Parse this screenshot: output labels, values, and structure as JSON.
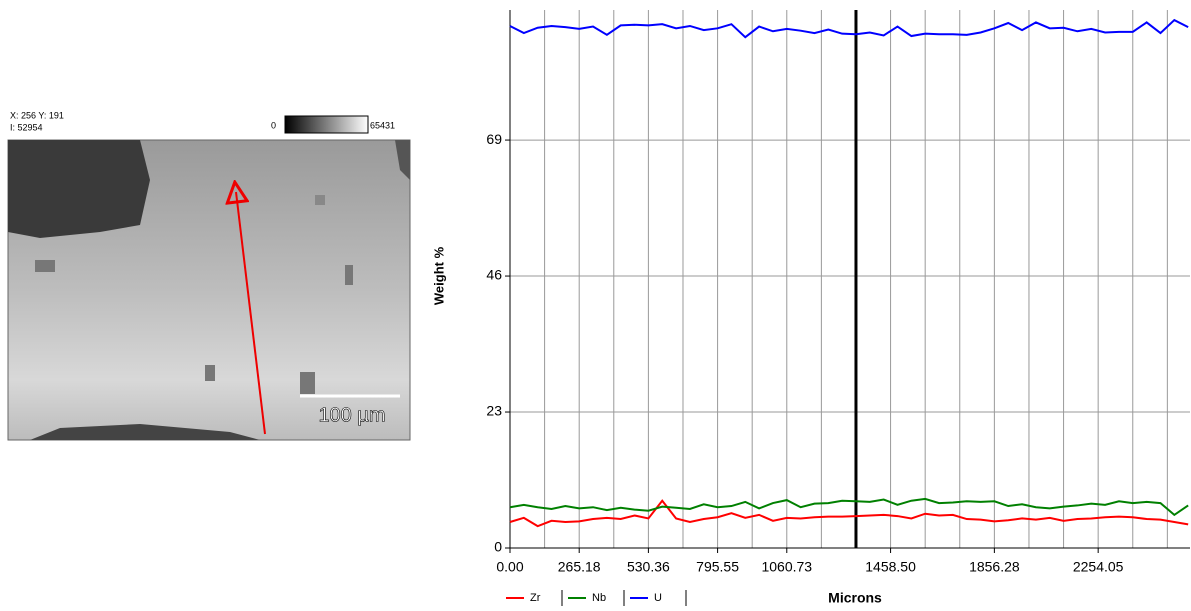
{
  "image_panel": {
    "coords": "X: 256 Y: 191",
    "intensity": "I: 52954",
    "colorbar_min": "0",
    "colorbar_max": "65431",
    "scale_bar": "100 µm"
  },
  "chart_data": {
    "type": "line",
    "y_label": "Weight %",
    "x_label": "Microns",
    "x": [
      0,
      53.04,
      106.08,
      159.12,
      212.16,
      265.2,
      318.24,
      371.28,
      424.32,
      477.36,
      530.4,
      583.44,
      636.48,
      689.52,
      742.56,
      795.6,
      848.64,
      901.68,
      954.72,
      1007.76,
      1060.8,
      1113.84,
      1166.88,
      1219.92,
      1272.96,
      1326,
      1379.04,
      1432.08,
      1485.12,
      1538.16,
      1591.2,
      1644.24,
      1697.28,
      1750.32,
      1803.36,
      1856.4,
      1909.44,
      1962.48,
      2015.52,
      2068.56,
      2121.6,
      2174.64,
      2227.68,
      2280.72,
      2333.76,
      2386.8,
      2439.84,
      2492.88,
      2545.92,
      2598.96
    ],
    "series": [
      {
        "name": "Zr",
        "color": "#ff0000",
        "values": [
          4.4,
          5.1,
          3.7,
          4.6,
          4.4,
          4.5,
          4.9,
          5.1,
          4.9,
          5.5,
          5.0,
          8.0,
          5.0,
          4.4,
          4.9,
          5.2,
          5.9,
          5.1,
          5.6,
          4.6,
          5.1,
          5.0,
          5.2,
          5.3,
          5.3,
          5.4,
          5.5,
          5.6,
          5.4,
          5.0,
          5.8,
          5.5,
          5.6,
          4.9,
          4.8,
          4.5,
          4.7,
          5.0,
          4.8,
          5.1,
          4.6,
          4.9,
          5.0,
          5.2,
          5.3,
          5.2,
          4.9,
          4.8,
          4.4,
          4.0
        ]
      },
      {
        "name": "Nb",
        "color": "#008000",
        "values": [
          6.9,
          7.3,
          6.9,
          6.6,
          7.1,
          6.7,
          6.9,
          6.4,
          6.8,
          6.5,
          6.3,
          7.0,
          6.8,
          6.6,
          7.4,
          6.9,
          7.1,
          7.8,
          6.7,
          7.6,
          8.1,
          6.9,
          7.5,
          7.6,
          8.0,
          7.9,
          7.8,
          8.2,
          7.3,
          8.0,
          8.3,
          7.6,
          7.7,
          7.9,
          7.8,
          7.9,
          7.1,
          7.4,
          6.9,
          6.7,
          7.0,
          7.2,
          7.5,
          7.3,
          7.9,
          7.6,
          7.8,
          7.6,
          5.6,
          7.2
        ]
      },
      {
        "name": "U",
        "color": "#0000ff",
        "values": [
          88.3,
          87.1,
          88.0,
          88.3,
          88.1,
          87.8,
          88.2,
          86.8,
          88.4,
          88.5,
          88.4,
          88.6,
          87.9,
          88.3,
          87.6,
          87.9,
          88.6,
          86.4,
          88.2,
          87.4,
          87.8,
          87.5,
          87.1,
          87.7,
          87.0,
          86.9,
          87.2,
          86.7,
          88.2,
          86.6,
          87.0,
          86.9,
          86.9,
          86.8,
          87.2,
          87.9,
          88.8,
          87.6,
          88.9,
          87.9,
          88.0,
          87.4,
          87.8,
          87.2,
          87.3,
          87.3,
          88.9,
          87.1,
          89.3,
          88.1
        ]
      }
    ],
    "xlim": [
      0,
      2606
    ],
    "ylim": [
      0,
      91
    ],
    "xticks": [
      {
        "value": 0,
        "label": "0.00"
      },
      265.18,
      530.36,
      795.55,
      1060.73,
      {
        "value": 1458.5,
        "label": "1458.50"
      },
      1856.28,
      2254.05
    ],
    "xminor": [
      132.59,
      397.77,
      662.96,
      928.14,
      1193.32,
      1591.09,
      1723.68,
      1988.87,
      2121.46,
      2386.64,
      2519.23
    ],
    "yticks": [
      0,
      23,
      46,
      69
    ],
    "cursor_x": 1325.91,
    "grid": true
  }
}
